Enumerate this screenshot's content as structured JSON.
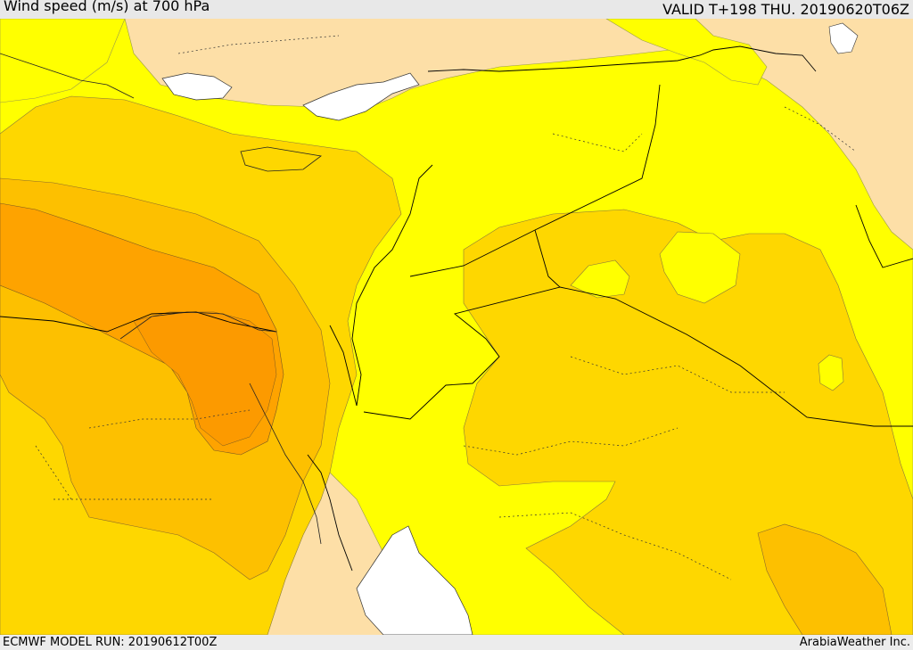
{
  "header": {
    "title": "Wind speed (m/s) at 700 hPa",
    "valid": "VALID T+198 THU. 20190620T06Z"
  },
  "footer": {
    "model_run": "ECMWF MODEL RUN: 20190612T00Z",
    "credit": "ArabiaWeather Inc."
  },
  "colors": {
    "land_background": "#fddfa7",
    "light_yellow": "#fdfd8f",
    "yellow": "#ffff00",
    "gold": "#fed700",
    "light_orange": "#fdc000",
    "orange": "#fea300",
    "dark_orange": "#fc9a00",
    "water": "#ffffff",
    "border": "#000000"
  }
}
